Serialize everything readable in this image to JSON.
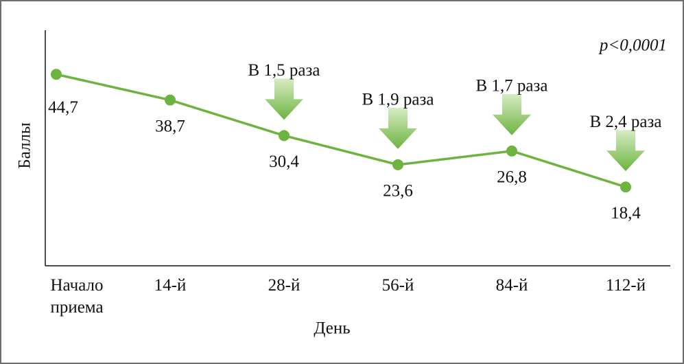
{
  "chart_data": {
    "type": "line",
    "x_label": "День",
    "y_label": "Баллы",
    "categories": [
      "Начало\nприема",
      "14-й",
      "28-й",
      "56-й",
      "84-й",
      "112-й"
    ],
    "values": [
      44.7,
      38.7,
      30.4,
      23.6,
      26.8,
      18.4
    ],
    "value_labels": [
      "44,7",
      "38,7",
      "30,4",
      "23,6",
      "26,8",
      "18,4"
    ],
    "color": "#6db33f",
    "ylim": [
      0,
      55
    ],
    "annotations": [
      {
        "category": "28-й",
        "text": "В 1,5 раза"
      },
      {
        "category": "56-й",
        "text": "В 1,9 раза"
      },
      {
        "category": "84-й",
        "text": "В 1,7 раза"
      },
      {
        "category": "112-й",
        "text": "В 2,4 раза"
      }
    ],
    "note": "p<0,0001"
  }
}
